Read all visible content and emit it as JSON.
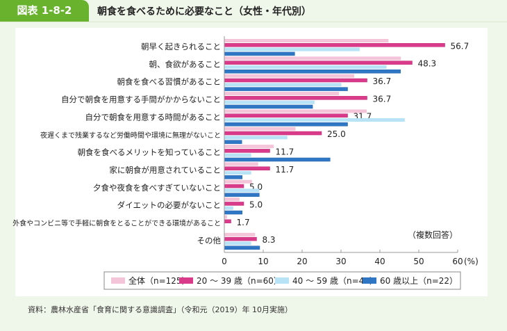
{
  "header": {
    "figure_label": "図表 1-8-2",
    "title": "朝食を食べるために必要なこと（女性・年代別）"
  },
  "source": "資料：農林水産省「食育に関する意識調査」（令和元（2019）年 10月実施）",
  "chart_data": {
    "type": "bar",
    "orientation": "horizontal",
    "categories": [
      "朝早く起きられること",
      "朝、食欲があること",
      "朝食を食べる習慣があること",
      "自分で朝食を用意する手間がかからないこと",
      "自分で朝食を用意する時間があること",
      "夜遅くまで残業するなど労働時間や環境に無理がないこと",
      "朝食を食べるメリットを知っていること",
      "家に朝食が用意されていること",
      "夕食や夜食を食べすぎていないこと",
      "ダイエットの必要がないこと",
      "外食やコンビニ等で手軽に朝食をとることができる環境があること",
      "その他"
    ],
    "series": [
      {
        "name": "全体（n=125）",
        "color": "#f4c4d8",
        "values": [
          42.2,
          45.4,
          33.4,
          29.5,
          36.6,
          18.3,
          12.7,
          8.7,
          7.1,
          3.9,
          0.7,
          7.9
        ]
      },
      {
        "name": "20 ～ 39 歳（n=60）",
        "color": "#d93a8a",
        "values": [
          56.7,
          48.3,
          36.7,
          36.7,
          31.7,
          25.0,
          11.7,
          11.7,
          5.0,
          5.0,
          1.7,
          8.3
        ],
        "labels": [
          "56.7",
          "48.3",
          "36.7",
          "36.7",
          "31.7",
          "25.0",
          "11.7",
          "11.7",
          "5.0",
          "5.0",
          "1.7",
          "8.3"
        ]
      },
      {
        "name": "40 ～ 59 歳（n=43）",
        "color": "#b8e2f6",
        "values": [
          34.8,
          41.7,
          30.1,
          23.2,
          46.4,
          16.2,
          6.9,
          6.9,
          9.0,
          2.3,
          0,
          6.9
        ]
      },
      {
        "name": "60 歳以上（n=22）",
        "color": "#2f77c4",
        "values": [
          18.1,
          45.3,
          31.7,
          22.7,
          31.7,
          4.5,
          27.2,
          4.6,
          9.0,
          4.6,
          0,
          9.1
        ]
      }
    ],
    "xlim": [
      0,
      60
    ],
    "xticks": [
      "0",
      "10",
      "20",
      "30",
      "40",
      "50",
      "60"
    ],
    "xunit": "(%)",
    "note": "（複数回答）",
    "legend": "bottom",
    "grid": false
  }
}
